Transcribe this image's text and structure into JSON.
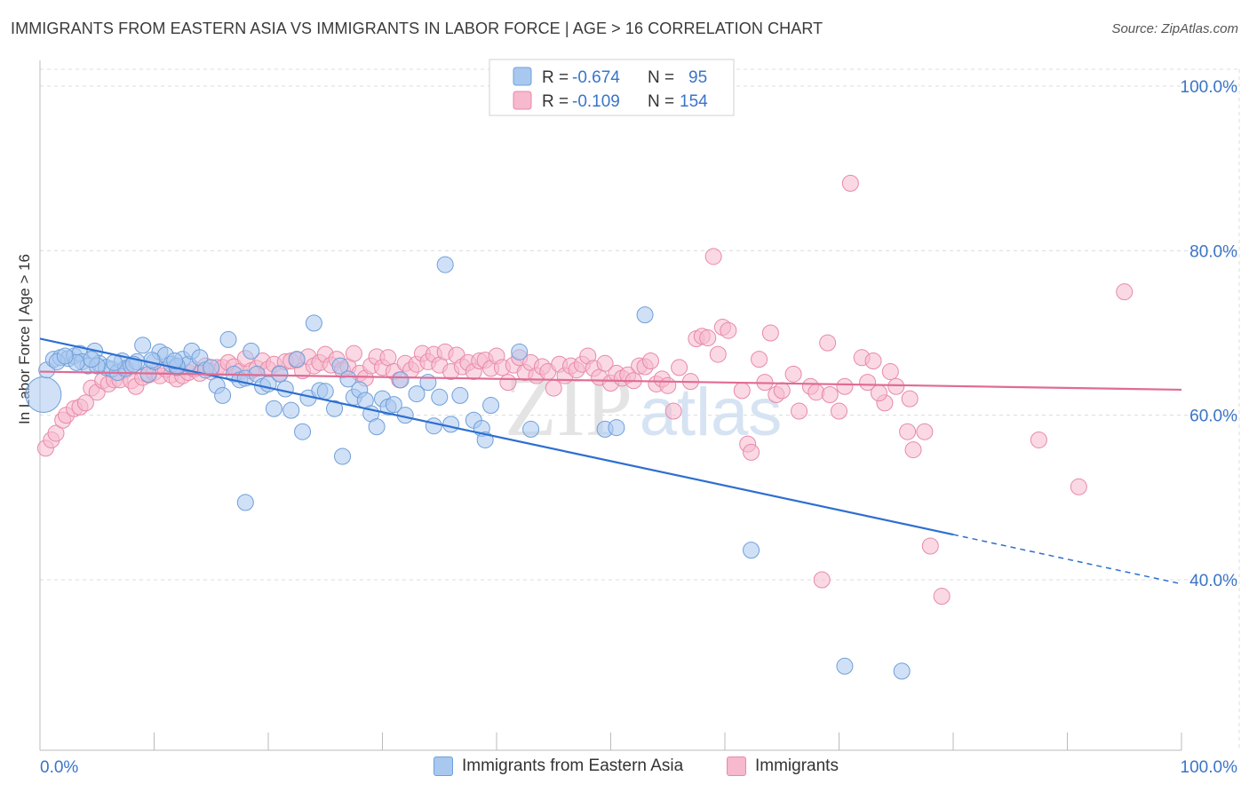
{
  "title": "IMMIGRANTS FROM EASTERN ASIA VS IMMIGRANTS IN LABOR FORCE | AGE > 16 CORRELATION CHART",
  "source": "Source: ZipAtlas.com",
  "watermark": {
    "zip": "ZIP",
    "atlas": "atlas"
  },
  "colors": {
    "blue_fill": "#a9c8f0",
    "blue_stroke": "#6f9fd8",
    "blue_line": "#2d6fd0",
    "pink_fill": "#f6b9cd",
    "pink_stroke": "#e889a8",
    "pink_line": "#e06b95",
    "tick_label": "#3a74c8",
    "grid": "#dcdcdc"
  },
  "legend": {
    "rows": [
      {
        "r_label": "R =",
        "r_value": "-0.674",
        "n_label": "N =",
        "n_value": "95",
        "color": "blue"
      },
      {
        "r_label": "R =",
        "r_value": "-0.109",
        "n_label": "N =",
        "n_value": "154",
        "color": "pink"
      }
    ]
  },
  "bottom_legend": [
    {
      "label": "Immigrants from Eastern Asia",
      "color": "blue"
    },
    {
      "label": "Immigrants",
      "color": "pink"
    }
  ],
  "chart_data": {
    "type": "scatter",
    "title": "IMMIGRANTS FROM EASTERN ASIA VS IMMIGRANTS IN LABOR FORCE | AGE > 16 CORRELATION CHART",
    "xlabel": "",
    "ylabel": "In Labor Force | Age > 16",
    "xlim": [
      0,
      100
    ],
    "ylim": [
      20,
      102
    ],
    "x_tick_labels": [
      "0.0%",
      "100.0%"
    ],
    "y_ticks": [
      40,
      60,
      80,
      100
    ],
    "y_tick_labels": [
      "40.0%",
      "60.0%",
      "80.0%",
      "100.0%"
    ],
    "grid": true,
    "legend_position": "top-center",
    "series": [
      {
        "name": "Immigrants from Eastern Asia",
        "color": "#a9c8f0",
        "trend": {
          "x": [
            0,
            80
          ],
          "y": [
            69.3,
            45.5
          ],
          "dashed_to": [
            100,
            39.5
          ]
        },
        "points": [
          [
            0.3,
            62.5
          ],
          [
            0.6,
            65.5
          ],
          [
            1.2,
            66.8
          ],
          [
            1.8,
            67.0
          ],
          [
            2.5,
            66.9
          ],
          [
            3.0,
            67.2
          ],
          [
            3.5,
            67.5
          ],
          [
            3.7,
            66.5
          ],
          [
            4.2,
            66.0
          ],
          [
            4.8,
            67.8
          ],
          [
            5.2,
            66.3
          ],
          [
            5.8,
            65.8
          ],
          [
            6.3,
            65.6
          ],
          [
            6.8,
            65.2
          ],
          [
            7.2,
            66.6
          ],
          [
            7.5,
            65.7
          ],
          [
            8.0,
            66.0
          ],
          [
            8.5,
            66.5
          ],
          [
            9.0,
            68.5
          ],
          [
            9.5,
            65.0
          ],
          [
            10.0,
            66.5
          ],
          [
            10.5,
            67.7
          ],
          [
            11.0,
            67.3
          ],
          [
            11.5,
            66.2
          ],
          [
            12.0,
            65.8
          ],
          [
            12.5,
            66.8
          ],
          [
            13.0,
            66.2
          ],
          [
            13.3,
            67.8
          ],
          [
            14.0,
            67.0
          ],
          [
            14.5,
            65.5
          ],
          [
            15.0,
            65.8
          ],
          [
            15.5,
            63.6
          ],
          [
            16.0,
            62.4
          ],
          [
            16.5,
            69.2
          ],
          [
            17.0,
            65.0
          ],
          [
            17.5,
            64.3
          ],
          [
            18.0,
            64.5
          ],
          [
            18.5,
            67.8
          ],
          [
            19.0,
            65.0
          ],
          [
            19.5,
            63.5
          ],
          [
            20.0,
            63.8
          ],
          [
            20.5,
            60.8
          ],
          [
            21.0,
            65.0
          ],
          [
            21.5,
            63.2
          ],
          [
            22.0,
            60.6
          ],
          [
            22.5,
            66.8
          ],
          [
            23.0,
            58.0
          ],
          [
            23.5,
            62.1
          ],
          [
            24.0,
            71.2
          ],
          [
            24.5,
            63.0
          ],
          [
            25.0,
            62.9
          ],
          [
            25.8,
            60.8
          ],
          [
            26.3,
            66.0
          ],
          [
            27.0,
            64.4
          ],
          [
            27.5,
            62.2
          ],
          [
            28.0,
            63.1
          ],
          [
            28.5,
            61.8
          ],
          [
            29.0,
            60.2
          ],
          [
            29.5,
            58.6
          ],
          [
            30.0,
            62.0
          ],
          [
            30.5,
            61.0
          ],
          [
            31.0,
            61.3
          ],
          [
            31.6,
            64.3
          ],
          [
            32.0,
            60.0
          ],
          [
            33.0,
            62.6
          ],
          [
            34.0,
            64.0
          ],
          [
            34.5,
            58.7
          ],
          [
            35.0,
            62.2
          ],
          [
            35.5,
            78.3
          ],
          [
            36.0,
            58.9
          ],
          [
            36.8,
            62.4
          ],
          [
            38.0,
            59.4
          ],
          [
            38.7,
            58.4
          ],
          [
            39.0,
            57.0
          ],
          [
            39.5,
            61.2
          ],
          [
            42.0,
            67.7
          ],
          [
            43.0,
            58.3
          ],
          [
            49.5,
            58.3
          ],
          [
            50.5,
            58.5
          ],
          [
            53.0,
            72.2
          ],
          [
            62.3,
            43.6
          ],
          [
            70.5,
            29.5
          ],
          [
            75.5,
            28.9
          ],
          [
            26.5,
            55.0
          ],
          [
            18.0,
            49.4
          ],
          [
            12.0,
            66.0
          ],
          [
            8.2,
            66.2
          ],
          [
            5.0,
            66.0
          ],
          [
            3.2,
            66.4
          ],
          [
            1.5,
            66.5
          ],
          [
            2.2,
            67.2
          ],
          [
            4.5,
            66.8
          ],
          [
            6.5,
            66.4
          ],
          [
            9.8,
            66.7
          ],
          [
            11.8,
            66.6
          ]
        ]
      },
      {
        "name": "Immigrants",
        "color": "#f6b9cd",
        "trend": {
          "x": [
            0,
            100
          ],
          "y": [
            65.3,
            63.1
          ]
        },
        "points": [
          [
            0.5,
            56.0
          ],
          [
            1.0,
            57.0
          ],
          [
            1.4,
            57.8
          ],
          [
            2.0,
            59.4
          ],
          [
            2.3,
            60.0
          ],
          [
            3.0,
            60.8
          ],
          [
            3.5,
            61.0
          ],
          [
            4.0,
            61.5
          ],
          [
            4.5,
            63.3
          ],
          [
            5.0,
            62.8
          ],
          [
            5.5,
            64.2
          ],
          [
            6.0,
            63.8
          ],
          [
            6.5,
            64.3
          ],
          [
            7.0,
            64.3
          ],
          [
            7.5,
            65.5
          ],
          [
            8.0,
            64.2
          ],
          [
            8.4,
            63.5
          ],
          [
            9.0,
            64.6
          ],
          [
            9.5,
            64.9
          ],
          [
            10.0,
            65.2
          ],
          [
            10.5,
            64.8
          ],
          [
            11.0,
            65.6
          ],
          [
            11.5,
            64.9
          ],
          [
            12.0,
            64.4
          ],
          [
            12.5,
            64.8
          ],
          [
            13.0,
            65.2
          ],
          [
            13.5,
            65.6
          ],
          [
            14.0,
            65.1
          ],
          [
            14.5,
            66.0
          ],
          [
            15.0,
            65.3
          ],
          [
            15.5,
            65.8
          ],
          [
            16.0,
            65.8
          ],
          [
            16.5,
            66.4
          ],
          [
            17.0,
            65.9
          ],
          [
            17.5,
            65.3
          ],
          [
            18.0,
            66.9
          ],
          [
            18.5,
            65.4
          ],
          [
            19.0,
            65.7
          ],
          [
            19.5,
            66.6
          ],
          [
            20.0,
            65.6
          ],
          [
            20.5,
            66.2
          ],
          [
            21.0,
            65.1
          ],
          [
            21.5,
            66.5
          ],
          [
            22.0,
            66.6
          ],
          [
            22.5,
            66.7
          ],
          [
            23.0,
            65.4
          ],
          [
            23.5,
            67.1
          ],
          [
            24.0,
            66.0
          ],
          [
            24.5,
            66.4
          ],
          [
            25.0,
            67.4
          ],
          [
            25.5,
            66.1
          ],
          [
            26.0,
            66.8
          ],
          [
            26.5,
            65.5
          ],
          [
            27.0,
            65.9
          ],
          [
            27.5,
            67.5
          ],
          [
            28.0,
            65.1
          ],
          [
            28.5,
            64.5
          ],
          [
            29.0,
            66.0
          ],
          [
            29.5,
            67.1
          ],
          [
            30.0,
            65.8
          ],
          [
            30.5,
            67.0
          ],
          [
            31.0,
            65.3
          ],
          [
            31.5,
            64.3
          ],
          [
            32.0,
            66.3
          ],
          [
            32.5,
            65.5
          ],
          [
            33.0,
            66.2
          ],
          [
            33.5,
            67.5
          ],
          [
            34.0,
            66.5
          ],
          [
            34.5,
            67.4
          ],
          [
            35.0,
            66.1
          ],
          [
            35.5,
            67.7
          ],
          [
            36.0,
            65.3
          ],
          [
            36.5,
            67.3
          ],
          [
            37.0,
            65.9
          ],
          [
            37.5,
            66.4
          ],
          [
            38.0,
            65.3
          ],
          [
            38.5,
            66.6
          ],
          [
            39.0,
            66.7
          ],
          [
            39.5,
            65.7
          ],
          [
            40.0,
            67.2
          ],
          [
            40.5,
            65.8
          ],
          [
            41.0,
            64.0
          ],
          [
            41.5,
            66.1
          ],
          [
            42.0,
            67.0
          ],
          [
            42.5,
            65.2
          ],
          [
            43.0,
            66.4
          ],
          [
            43.5,
            64.8
          ],
          [
            44.0,
            65.9
          ],
          [
            44.5,
            65.3
          ],
          [
            45.0,
            63.3
          ],
          [
            45.5,
            66.2
          ],
          [
            46.0,
            64.8
          ],
          [
            46.5,
            66.0
          ],
          [
            47.0,
            65.5
          ],
          [
            47.5,
            66.2
          ],
          [
            48.0,
            67.2
          ],
          [
            48.5,
            65.7
          ],
          [
            49.0,
            64.6
          ],
          [
            49.5,
            66.3
          ],
          [
            50.0,
            63.9
          ],
          [
            50.5,
            65.1
          ],
          [
            51.0,
            64.5
          ],
          [
            51.5,
            64.9
          ],
          [
            52.0,
            64.2
          ],
          [
            52.5,
            66.0
          ],
          [
            53.0,
            65.9
          ],
          [
            53.5,
            66.6
          ],
          [
            54.0,
            63.8
          ],
          [
            54.5,
            64.4
          ],
          [
            55.0,
            63.6
          ],
          [
            55.5,
            60.5
          ],
          [
            56.0,
            65.8
          ],
          [
            57.0,
            64.1
          ],
          [
            57.5,
            69.3
          ],
          [
            58.0,
            69.6
          ],
          [
            58.5,
            69.4
          ],
          [
            59.0,
            79.3
          ],
          [
            59.4,
            67.4
          ],
          [
            59.8,
            70.7
          ],
          [
            60.3,
            70.3
          ],
          [
            61.5,
            63.0
          ],
          [
            62.0,
            56.5
          ],
          [
            62.3,
            55.5
          ],
          [
            63.0,
            66.8
          ],
          [
            63.5,
            64.0
          ],
          [
            64.0,
            70.0
          ],
          [
            64.5,
            62.5
          ],
          [
            65.0,
            63.0
          ],
          [
            66.0,
            65.0
          ],
          [
            66.5,
            60.5
          ],
          [
            67.5,
            63.5
          ],
          [
            68.0,
            62.8
          ],
          [
            69.0,
            68.8
          ],
          [
            69.2,
            62.5
          ],
          [
            70.0,
            60.5
          ],
          [
            70.5,
            63.5
          ],
          [
            71.0,
            88.2
          ],
          [
            72.0,
            67.0
          ],
          [
            72.5,
            64.0
          ],
          [
            73.0,
            66.6
          ],
          [
            74.0,
            61.5
          ],
          [
            74.5,
            65.3
          ],
          [
            75.0,
            63.5
          ],
          [
            76.0,
            58.0
          ],
          [
            76.5,
            55.8
          ],
          [
            77.5,
            58.0
          ],
          [
            78.0,
            44.1
          ],
          [
            79.0,
            38.0
          ],
          [
            87.5,
            57.0
          ],
          [
            91.0,
            51.3
          ],
          [
            95.0,
            75.0
          ],
          [
            73.5,
            62.7
          ],
          [
            68.5,
            40.0
          ],
          [
            76.2,
            62.0
          ]
        ]
      }
    ]
  }
}
